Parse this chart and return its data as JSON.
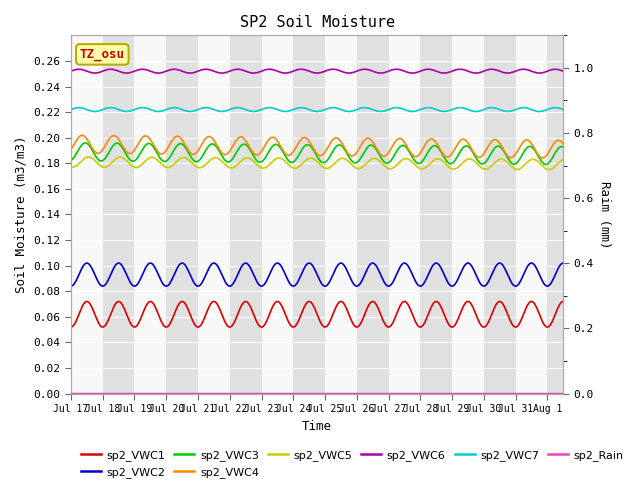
{
  "title": "SP2 Soil Moisture",
  "xlabel": "Time",
  "ylabel_left": "Soil Moisture (m3/m3)",
  "ylabel_right": "Raim (mm)",
  "n_days": 15.5,
  "ylim_left": [
    0.0,
    0.28
  ],
  "ylim_right": [
    0.0,
    1.1
  ],
  "x_ticks_labels": [
    "Jul 17",
    "Jul 18",
    "Jul 19",
    "Jul 20",
    "Jul 21",
    "Jul 22",
    "Jul 23",
    "Jul 24",
    "Jul 25",
    "Jul 26",
    "Jul 27",
    "Jul 28",
    "Jul 29",
    "Jul 30",
    "Jul 31",
    "Aug 1"
  ],
  "annotation_text": "TZ_osu",
  "annotation_color": "#cc0000",
  "annotation_bg": "#ffffaa",
  "annotation_border": "#bbaa00",
  "bg_band_color": "#e0e0e0",
  "bg_white_color": "#f8f8f8",
  "series": [
    {
      "name": "sp2_VWC1",
      "color": "#dd0000",
      "base": 0.062,
      "amp": 0.01,
      "period": 1.0,
      "phase": 0.25,
      "trend": 0.0,
      "ax": "left"
    },
    {
      "name": "sp2_VWC2",
      "color": "#0000cc",
      "base": 0.093,
      "amp": 0.009,
      "period": 1.0,
      "phase": 0.25,
      "trend": 0.0,
      "ax": "left"
    },
    {
      "name": "sp2_VWC3",
      "color": "#00cc00",
      "base": 0.189,
      "amp": 0.007,
      "period": 1.0,
      "phase": 0.2,
      "trend": -0.003,
      "ax": "left"
    },
    {
      "name": "sp2_VWC4",
      "color": "#ff8800",
      "base": 0.195,
      "amp": 0.007,
      "period": 1.0,
      "phase": 0.1,
      "trend": -0.004,
      "ax": "left"
    },
    {
      "name": "sp2_VWC5",
      "color": "#cccc00",
      "base": 0.181,
      "amp": 0.004,
      "period": 1.0,
      "phase": 0.3,
      "trend": -0.002,
      "ax": "left"
    },
    {
      "name": "sp2_VWC6",
      "color": "#aa00aa",
      "base": 0.252,
      "amp": 0.0015,
      "period": 1.0,
      "phase": 0.0,
      "trend": 0.0,
      "ax": "left"
    },
    {
      "name": "sp2_VWC7",
      "color": "#00cccc",
      "base": 0.222,
      "amp": 0.0015,
      "period": 1.0,
      "phase": 0.0,
      "trend": 0.0,
      "ax": "left"
    },
    {
      "name": "sp2_Rain",
      "color": "#ee44bb",
      "base": 0.0,
      "amp": 0.0,
      "period": 1.0,
      "phase": 0.0,
      "trend": 0.0,
      "ax": "right"
    }
  ],
  "legend_entries": [
    {
      "label": "sp2_VWC1",
      "color": "#dd0000"
    },
    {
      "label": "sp2_VWC2",
      "color": "#0000cc"
    },
    {
      "label": "sp2_VWC3",
      "color": "#00cc00"
    },
    {
      "label": "sp2_VWC4",
      "color": "#ff8800"
    },
    {
      "label": "sp2_VWC5",
      "color": "#cccc00"
    },
    {
      "label": "sp2_VWC6",
      "color": "#aa00aa"
    },
    {
      "label": "sp2_VWC7",
      "color": "#00cccc"
    },
    {
      "label": "sp2_Rain",
      "color": "#ee44bb"
    }
  ]
}
